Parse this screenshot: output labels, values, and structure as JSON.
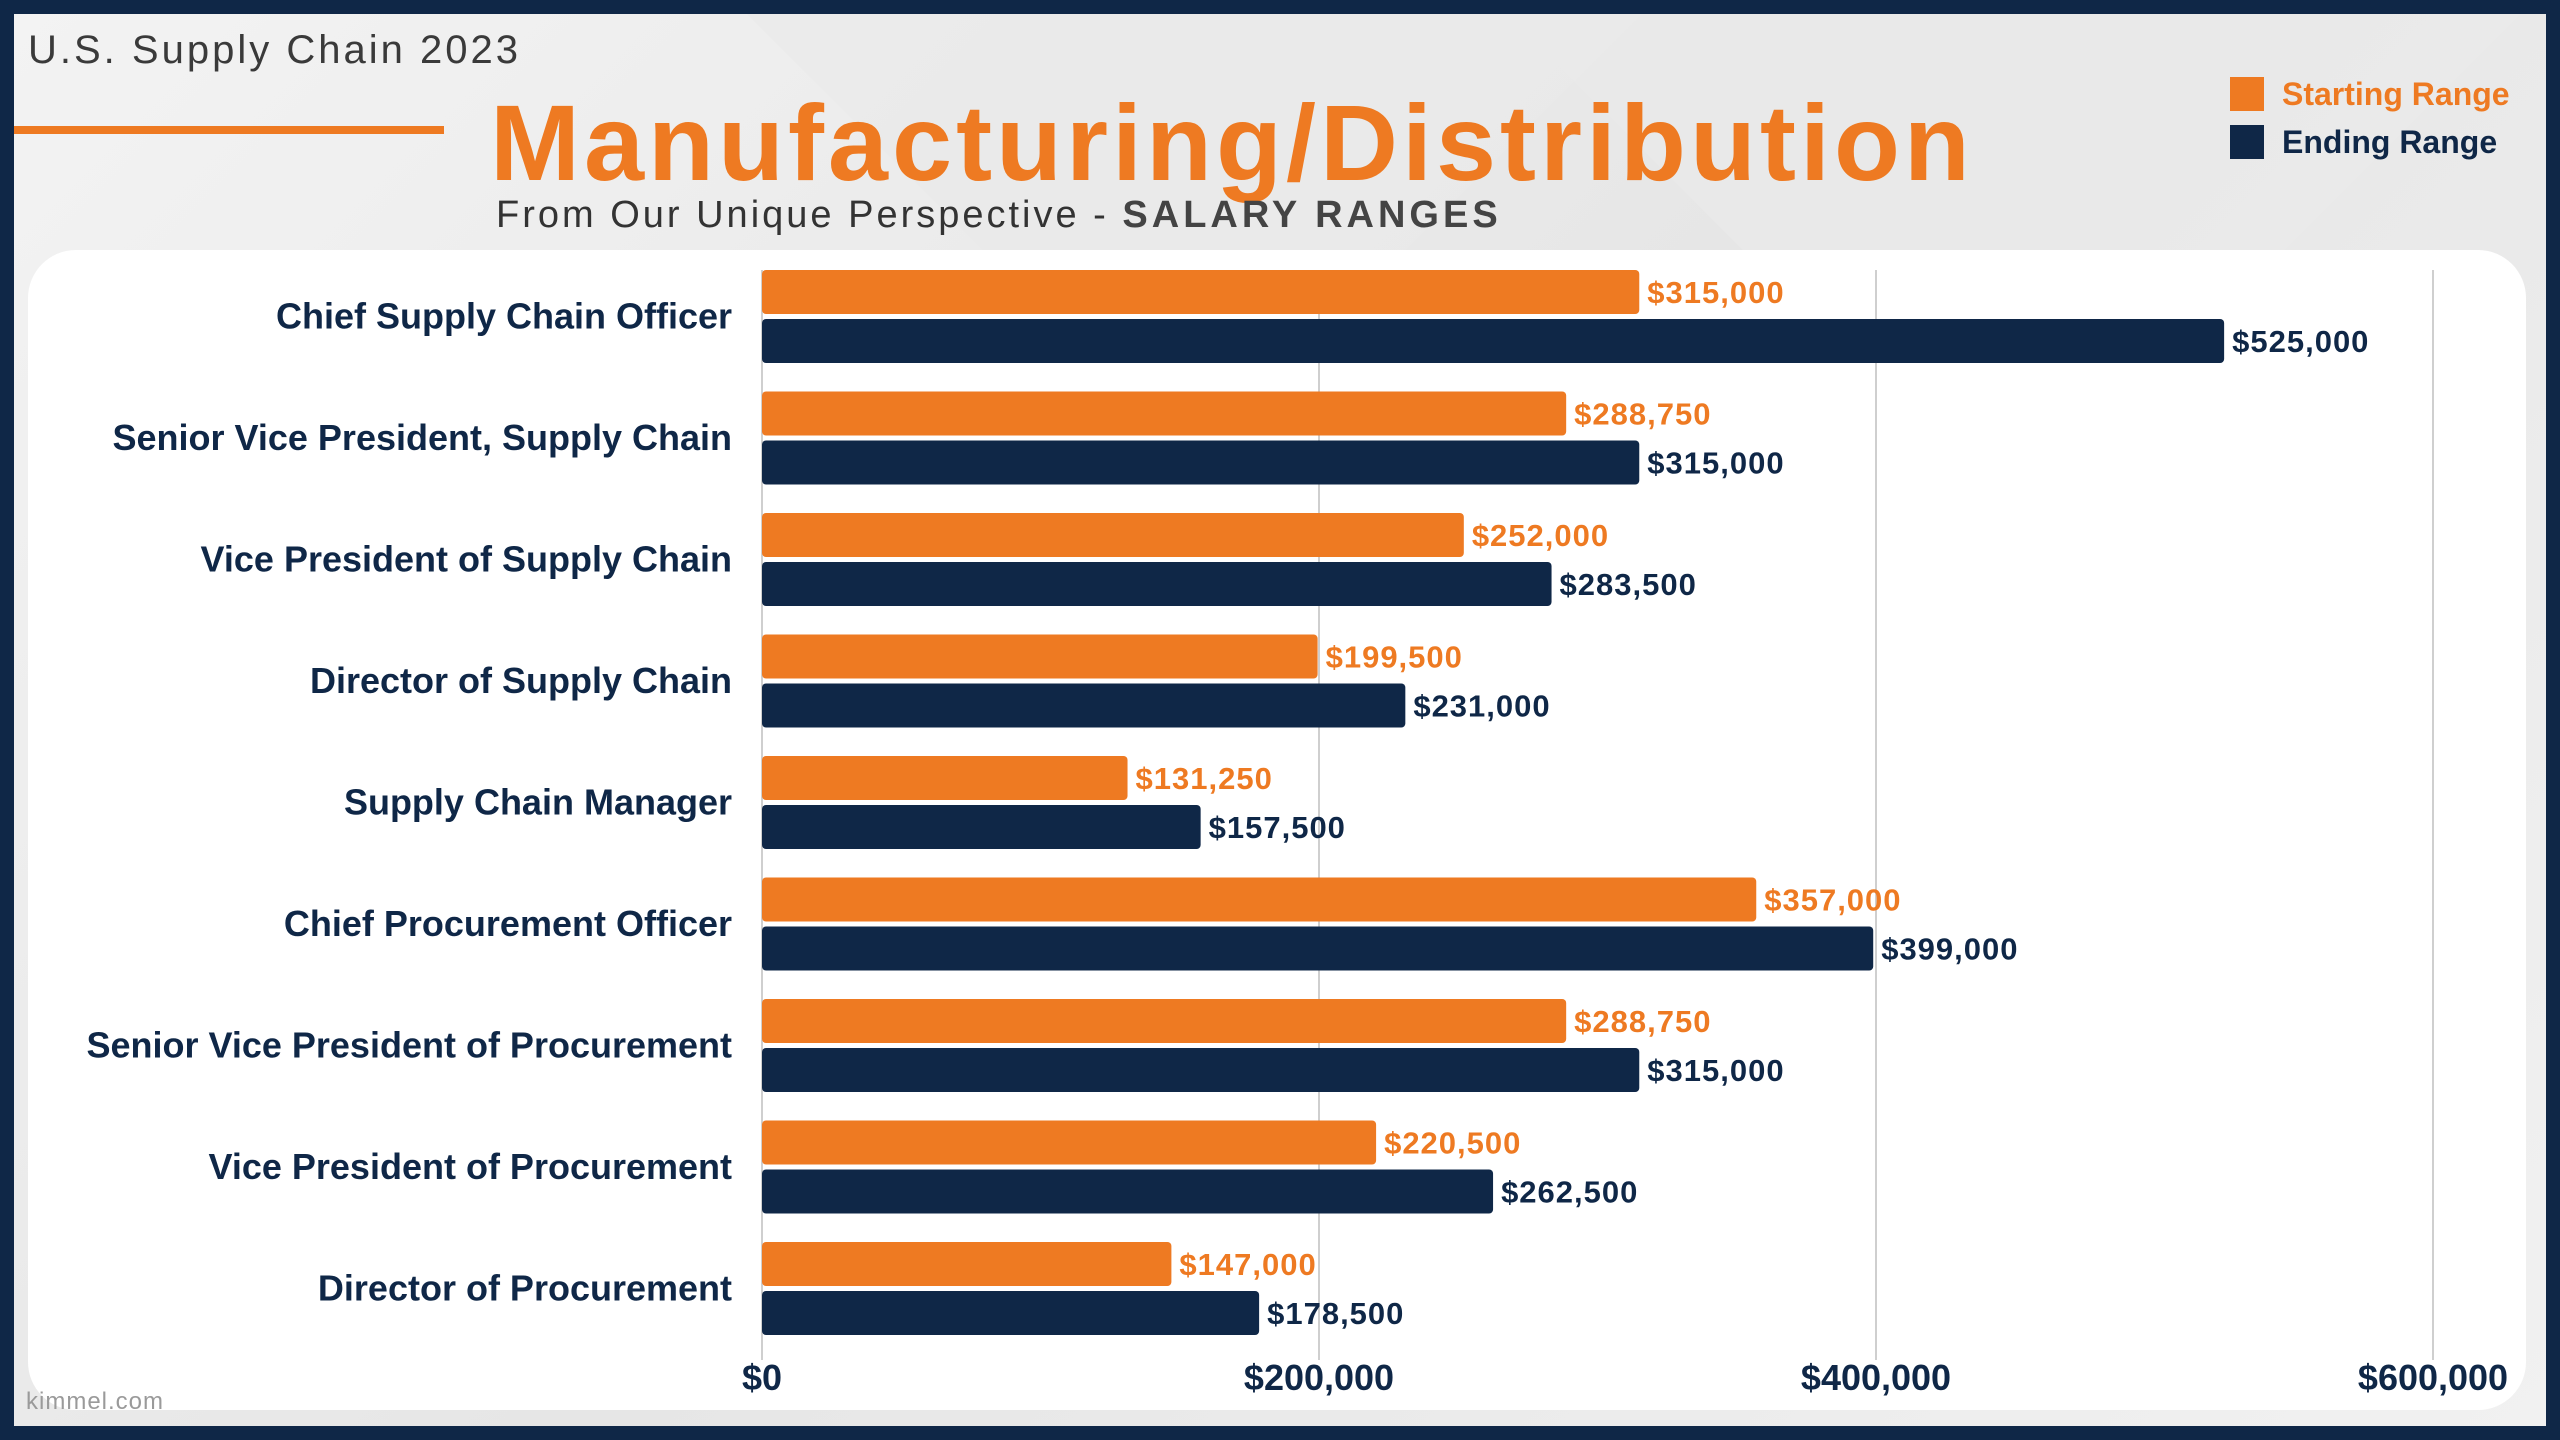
{
  "header": {
    "eyebrow": "U.S. Supply Chain 2023",
    "title": "Manufacturing/Distribution",
    "subtitle_prefix": "From Our Unique Perspective - ",
    "subtitle_strong": "SALARY RANGES"
  },
  "footer": {
    "source": "kimmel.com"
  },
  "colors": {
    "starting": "#ee7a22",
    "ending": "#0f2747",
    "grid": "#cfcfcf"
  },
  "chart_data": {
    "type": "bar",
    "orientation": "horizontal",
    "categories": [
      "Chief Supply Chain Officer",
      "Senior Vice President, Supply Chain",
      "Vice President of Supply Chain",
      "Director of Supply Chain",
      "Supply Chain Manager",
      "Chief Procurement Officer",
      "Senior Vice President of Procurement",
      "Vice President of Procurement",
      "Director of Procurement"
    ],
    "series": [
      {
        "name": "Starting Range",
        "values": [
          315000,
          288750,
          252000,
          199500,
          131250,
          357000,
          288750,
          220500,
          147000
        ],
        "labels": [
          "$315,000",
          "$288,750",
          "$252,000",
          "$199,500",
          "$131,250",
          "$357,000",
          "$288,750",
          "$220,500",
          "$147,000"
        ]
      },
      {
        "name": "Ending Range",
        "values": [
          525000,
          315000,
          283500,
          231000,
          157500,
          399000,
          315000,
          262500,
          178500
        ],
        "labels": [
          "$525,000",
          "$315,000",
          "$283,500",
          "$231,000",
          "$157,500",
          "$399,000",
          "$315,000",
          "$262,500",
          "$178,500"
        ]
      }
    ],
    "xlim": [
      0,
      600000
    ],
    "xticks": [
      0,
      200000,
      400000,
      600000
    ],
    "xtick_labels": [
      "$0",
      "$200,000",
      "$400,000",
      "$600,000"
    ],
    "grid": true,
    "legend_position": "top-right"
  }
}
